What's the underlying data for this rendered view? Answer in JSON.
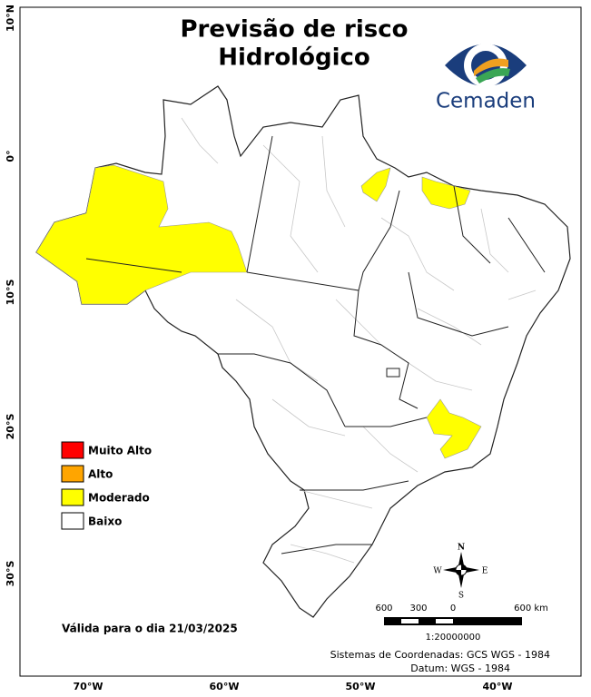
{
  "title": [
    "Previsão de risco",
    "Hidrológico"
  ],
  "logo": {
    "text": "Cemaden"
  },
  "axes": {
    "latitude_labels": [
      "10°N",
      "0°",
      "10°S",
      "20°S",
      "30°S"
    ],
    "longitude_labels": [
      "70°W",
      "60°W",
      "50°W",
      "40°W"
    ]
  },
  "legend": [
    {
      "label": "Muito Alto",
      "color": "#ff0000"
    },
    {
      "label": "Alto",
      "color": "#ffa500"
    },
    {
      "label": "Moderado",
      "color": "#ffff00"
    },
    {
      "label": "Baixo",
      "color": "#ffffff"
    }
  ],
  "validity": "Válida para o dia 21/03/2025",
  "scale": {
    "labels": [
      "600",
      "300",
      "0",
      "600 km"
    ],
    "ratio": "1:20000000"
  },
  "compass": {
    "n": "N",
    "s": "S",
    "e": "E",
    "w": "W"
  },
  "footer": [
    "Sistemas de Coordenadas: GCS WGS - 1984",
    "Datum: WGS - 1984"
  ]
}
